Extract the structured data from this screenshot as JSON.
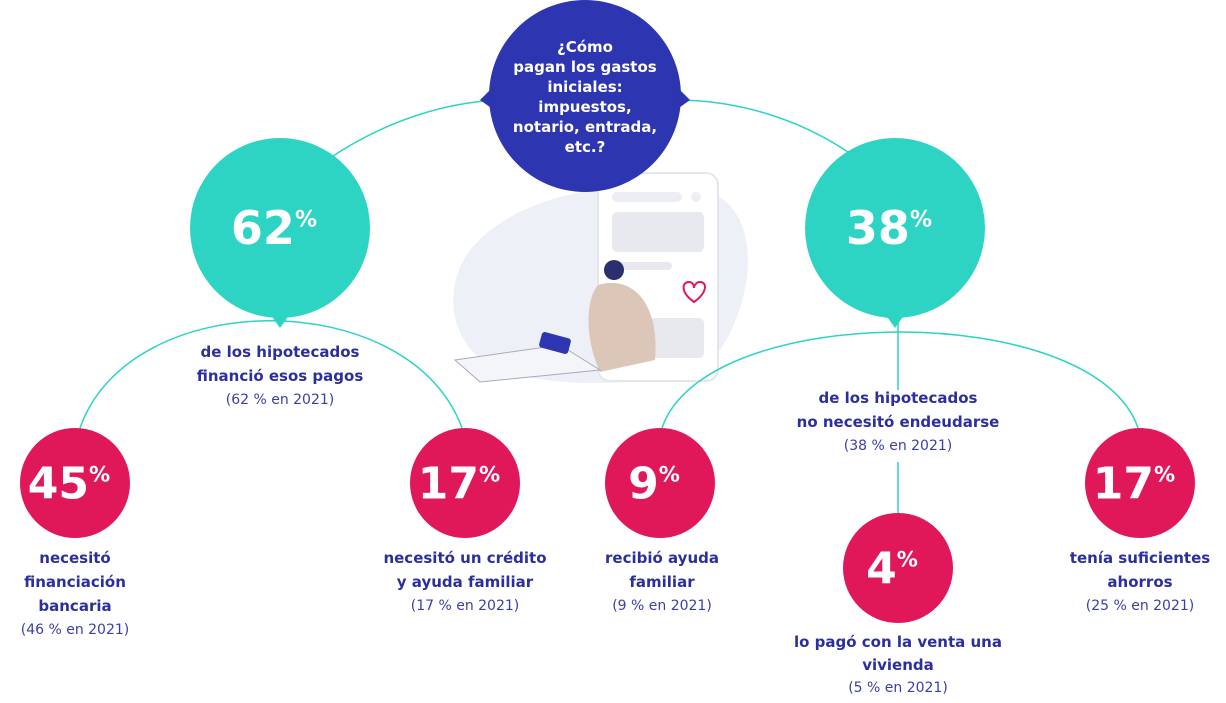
{
  "question": [
    "¿Cómo",
    "pagan los gastos",
    "iniciales:",
    "impuestos,",
    "notario, entrada,",
    "etc.?"
  ],
  "nodes": [
    {
      "value": 62,
      "unit": "%",
      "label": [
        "de los hipotecados",
        "financió esos pagos"
      ],
      "note": "(62 % en 2021)"
    },
    {
      "value": 38,
      "unit": "%",
      "label": [
        "de los hipotecados",
        "no necesitó endeudarse"
      ],
      "note": "(38 % en 2021)"
    },
    {
      "value": 45,
      "unit": "%",
      "label": [
        "necesitó",
        "financiación",
        "bancaria"
      ],
      "note": "(46 % en 2021)"
    },
    {
      "value": 17,
      "unit": "%",
      "label": [
        "necesitó un crédito",
        "y ayuda familiar"
      ],
      "note": "(17 % en 2021)"
    },
    {
      "value": 9,
      "unit": "%",
      "label": [
        "recibió ayuda",
        "familiar"
      ],
      "note": "(9 % en 2021)"
    },
    {
      "value": 4,
      "unit": "%",
      "label": [
        "lo pagó con la venta una",
        "vivienda"
      ],
      "note": "(5 % en 2021)"
    },
    {
      "value": 17,
      "unit": "%",
      "label": [
        "tenía suficientes",
        "ahorros"
      ],
      "note": "(25 % en 2021)"
    }
  ]
}
